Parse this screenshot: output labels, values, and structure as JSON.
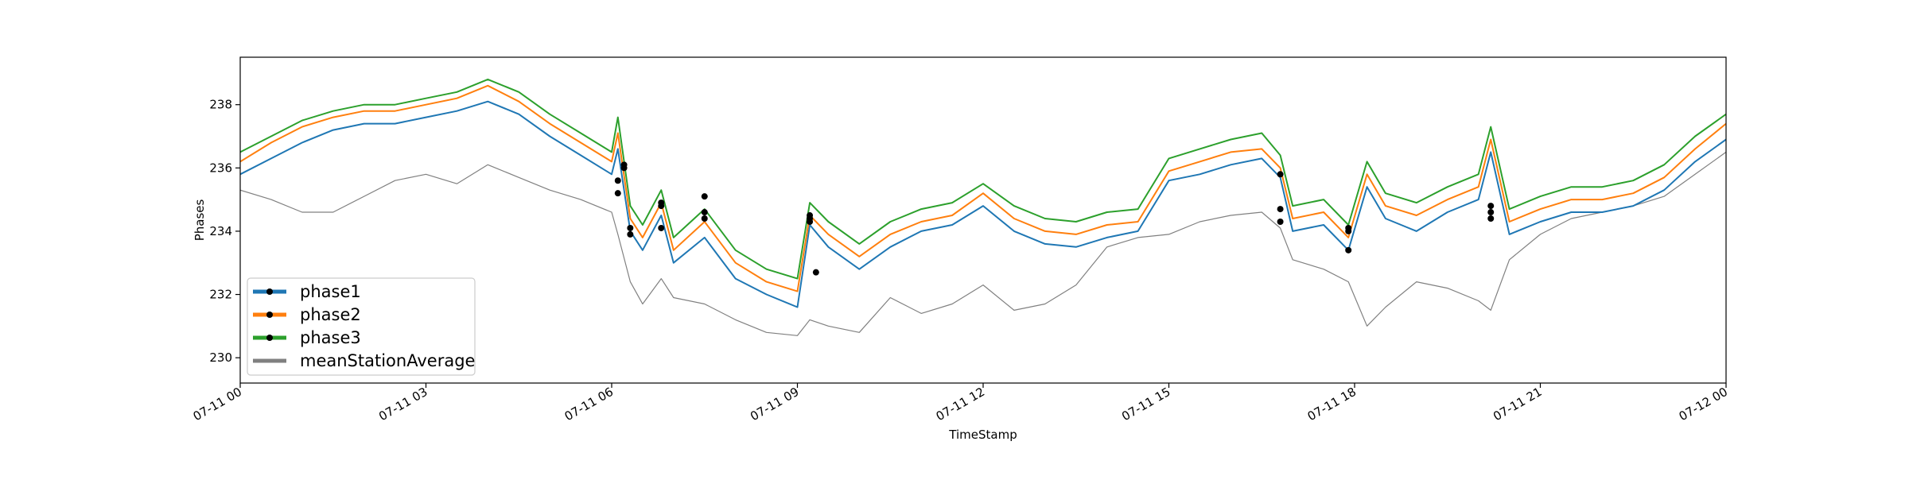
{
  "chart_data": {
    "type": "line",
    "title": "",
    "xlabel": "TimeStamp",
    "ylabel": "Phases",
    "xlim": [
      "2021-07-11 00:00",
      "2021-07-12 00:00"
    ],
    "ylim": [
      229.2,
      239.5
    ],
    "grid": false,
    "legend_position": "lower-left",
    "x_ticks": [
      {
        "hour": 0,
        "label": "07-11 00"
      },
      {
        "hour": 3,
        "label": "07-11 03"
      },
      {
        "hour": 6,
        "label": "07-11 06"
      },
      {
        "hour": 9,
        "label": "07-11 09"
      },
      {
        "hour": 12,
        "label": "07-11 12"
      },
      {
        "hour": 15,
        "label": "07-11 15"
      },
      {
        "hour": 18,
        "label": "07-11 18"
      },
      {
        "hour": 21,
        "label": "07-11 21"
      },
      {
        "hour": 24,
        "label": "07-12 00"
      }
    ],
    "y_ticks": [
      230,
      232,
      234,
      236,
      238
    ],
    "x_hours": [
      0.0,
      0.5,
      1.0,
      1.5,
      2.0,
      2.5,
      3.0,
      3.5,
      4.0,
      4.5,
      5.0,
      5.5,
      6.0,
      6.1,
      6.3,
      6.5,
      6.8,
      7.0,
      7.5,
      8.0,
      8.5,
      9.0,
      9.2,
      9.5,
      10.0,
      10.5,
      11.0,
      11.5,
      12.0,
      12.5,
      13.0,
      13.5,
      14.0,
      14.5,
      15.0,
      15.5,
      16.0,
      16.5,
      16.8,
      17.0,
      17.5,
      17.9,
      18.2,
      18.5,
      19.0,
      19.5,
      20.0,
      20.2,
      20.5,
      21.0,
      21.5,
      22.0,
      22.5,
      23.0,
      23.5,
      24.0
    ],
    "series": [
      {
        "name": "phase1",
        "color": "#1f77b4",
        "values": [
          235.8,
          236.3,
          236.8,
          237.2,
          237.4,
          237.4,
          237.6,
          237.8,
          238.1,
          237.7,
          237.0,
          236.4,
          235.8,
          236.6,
          234.0,
          233.4,
          234.5,
          233.0,
          233.8,
          232.5,
          232.0,
          231.6,
          234.2,
          233.5,
          232.8,
          233.5,
          234.0,
          234.2,
          234.8,
          234.0,
          233.6,
          233.5,
          233.8,
          234.0,
          235.6,
          235.8,
          236.1,
          236.3,
          235.7,
          234.0,
          234.2,
          233.4,
          235.4,
          234.4,
          234.0,
          234.6,
          235.0,
          236.5,
          233.9,
          234.3,
          234.6,
          234.6,
          234.8,
          235.3,
          236.2,
          236.9
        ]
      },
      {
        "name": "phase2",
        "color": "#ff7f0e",
        "values": [
          236.2,
          236.8,
          237.3,
          237.6,
          237.8,
          237.8,
          238.0,
          238.2,
          238.6,
          238.1,
          237.4,
          236.8,
          236.2,
          237.1,
          234.4,
          233.8,
          234.9,
          233.4,
          234.3,
          233.0,
          232.4,
          232.1,
          234.5,
          233.9,
          233.2,
          233.9,
          234.3,
          234.5,
          235.2,
          234.4,
          234.0,
          233.9,
          234.2,
          234.3,
          235.9,
          236.2,
          236.5,
          236.6,
          236.0,
          234.4,
          234.6,
          233.8,
          235.8,
          234.8,
          234.5,
          235.0,
          235.4,
          236.9,
          234.3,
          234.7,
          235.0,
          235.0,
          235.2,
          235.7,
          236.6,
          237.4
        ]
      },
      {
        "name": "phase3",
        "color": "#2ca02c",
        "values": [
          236.5,
          237.0,
          237.5,
          237.8,
          238.0,
          238.0,
          238.2,
          238.4,
          238.8,
          238.4,
          237.7,
          237.1,
          236.5,
          237.6,
          234.8,
          234.2,
          235.3,
          233.8,
          234.7,
          233.4,
          232.8,
          232.5,
          234.9,
          234.3,
          233.6,
          234.3,
          234.7,
          234.9,
          235.5,
          234.8,
          234.4,
          234.3,
          234.6,
          234.7,
          236.3,
          236.6,
          236.9,
          237.1,
          236.4,
          234.8,
          235.0,
          234.2,
          236.2,
          235.2,
          234.9,
          235.4,
          235.8,
          237.3,
          234.7,
          235.1,
          235.4,
          235.4,
          235.6,
          236.1,
          237.0,
          237.7
        ]
      },
      {
        "name": "meanStationAverage",
        "color": "#808080",
        "values": [
          235.3,
          235.0,
          234.6,
          234.6,
          235.1,
          235.6,
          235.8,
          235.5,
          236.1,
          235.7,
          235.3,
          235.0,
          234.6,
          233.9,
          232.4,
          231.7,
          232.5,
          231.9,
          231.7,
          231.2,
          230.8,
          230.7,
          231.2,
          231.0,
          230.8,
          231.9,
          231.4,
          231.7,
          232.3,
          231.5,
          231.7,
          232.3,
          233.5,
          233.8,
          233.9,
          234.3,
          234.5,
          234.6,
          234.1,
          233.1,
          232.8,
          232.4,
          231.0,
          231.6,
          232.4,
          232.2,
          231.8,
          231.5,
          233.1,
          233.9,
          234.4,
          234.6,
          234.8,
          235.1,
          235.8,
          236.5
        ]
      }
    ],
    "marker_points": {
      "phase1": [
        [
          6.1,
          235.2
        ],
        [
          6.3,
          233.9
        ],
        [
          6.8,
          234.1
        ],
        [
          7.5,
          234.4
        ],
        [
          9.2,
          234.3
        ],
        [
          16.8,
          234.3
        ],
        [
          17.9,
          233.4
        ],
        [
          20.2,
          234.4
        ]
      ],
      "phase2": [
        [
          6.2,
          236.1
        ],
        [
          6.8,
          234.8
        ],
        [
          7.5,
          234.6
        ],
        [
          9.2,
          234.4
        ],
        [
          16.8,
          234.7
        ],
        [
          17.9,
          234.0
        ],
        [
          20.2,
          234.6
        ]
      ],
      "phase3": [
        [
          6.1,
          235.6
        ],
        [
          6.2,
          236.0
        ],
        [
          6.3,
          234.1
        ],
        [
          6.8,
          234.9
        ],
        [
          7.5,
          235.1
        ],
        [
          9.2,
          234.5
        ],
        [
          9.3,
          232.7
        ],
        [
          16.8,
          235.8
        ],
        [
          17.9,
          234.1
        ],
        [
          20.2,
          234.8
        ]
      ]
    }
  }
}
